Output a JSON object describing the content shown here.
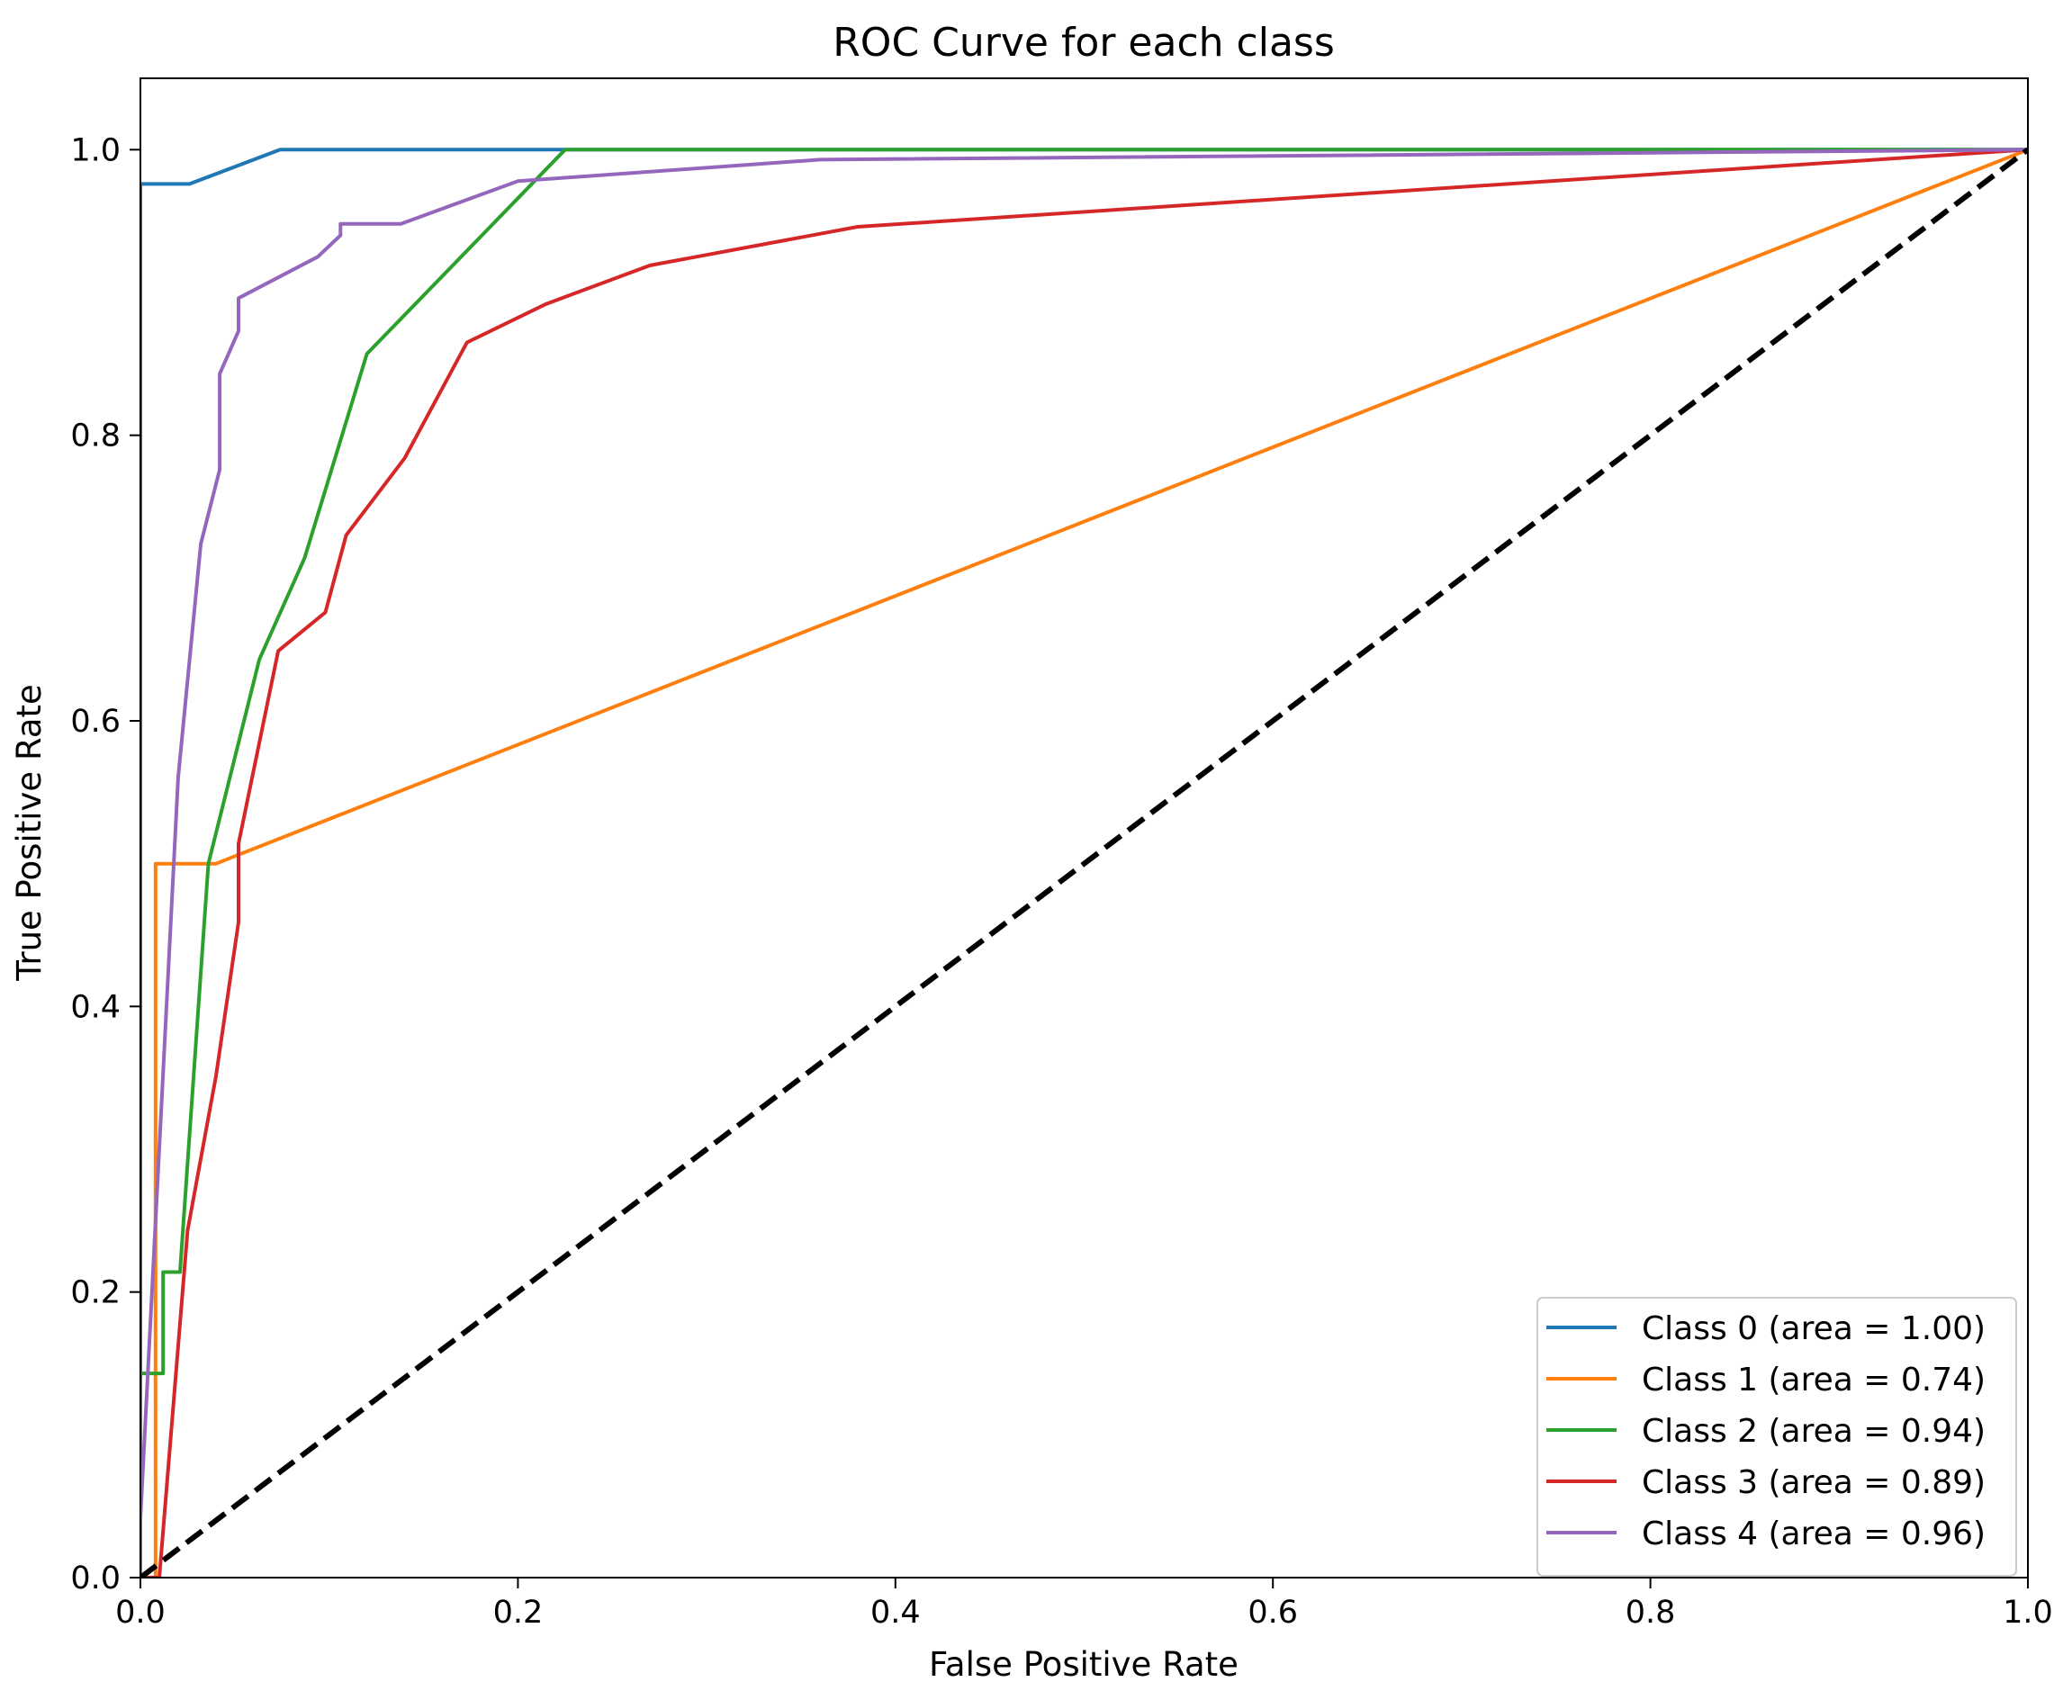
{
  "chart_data": {
    "type": "line",
    "title": "ROC Curve for each class",
    "xlabel": "False Positive Rate",
    "ylabel": "True Positive Rate",
    "xlim": [
      0.0,
      1.0
    ],
    "ylim": [
      0.0,
      1.05
    ],
    "xticks": [
      "0.0",
      "0.2",
      "0.4",
      "0.6",
      "0.8",
      "1.0"
    ],
    "yticks": [
      "0.0",
      "0.2",
      "0.4",
      "0.6",
      "0.8",
      "1.0"
    ],
    "grid": false,
    "legend_position": "lower right",
    "series": [
      {
        "name": "Class 0 (area = 1.00)",
        "color": "#1f77b4",
        "x": [
          0.0,
          0.0,
          0.026,
          0.074,
          1.0
        ],
        "y": [
          0.0,
          0.976,
          0.976,
          1.0,
          1.0
        ]
      },
      {
        "name": "Class 1 (area = 0.74)",
        "color": "#ff7f0e",
        "x": [
          0.0,
          0.008,
          0.008,
          0.04,
          1.0
        ],
        "y": [
          0.0,
          0.0,
          0.5,
          0.5,
          1.0
        ]
      },
      {
        "name": "Class 2 (area = 0.94)",
        "color": "#2ca02c",
        "x": [
          0.0,
          0.0,
          0.008,
          0.012,
          0.012,
          0.021,
          0.021,
          0.036,
          0.063,
          0.087,
          0.12,
          0.225,
          1.0
        ],
        "y": [
          0.0,
          0.143,
          0.143,
          0.143,
          0.214,
          0.214,
          0.214,
          0.5,
          0.643,
          0.714,
          0.857,
          1.0,
          1.0
        ]
      },
      {
        "name": "Class 3 (area = 0.89)",
        "color": "#d62728",
        "x": [
          0.0,
          0.01,
          0.025,
          0.04,
          0.052,
          0.052,
          0.073,
          0.098,
          0.109,
          0.14,
          0.173,
          0.215,
          0.27,
          0.38,
          1.0
        ],
        "y": [
          0.0,
          0.0,
          0.243,
          0.351,
          0.459,
          0.514,
          0.649,
          0.676,
          0.73,
          0.784,
          0.865,
          0.892,
          0.919,
          0.946,
          1.0
        ]
      },
      {
        "name": "Class 4 (area = 0.96)",
        "color": "#9467bd",
        "x": [
          0.0,
          0.0,
          0.02,
          0.032,
          0.042,
          0.042,
          0.052,
          0.052,
          0.094,
          0.106,
          0.106,
          0.138,
          0.2,
          0.36,
          1.0
        ],
        "y": [
          0.0,
          0.041,
          0.56,
          0.724,
          0.776,
          0.843,
          0.873,
          0.896,
          0.925,
          0.94,
          0.948,
          0.948,
          0.978,
          0.993,
          1.0
        ]
      },
      {
        "name": "",
        "color": "#000000",
        "dashed": true,
        "x": [
          0.0,
          1.0
        ],
        "y": [
          0.0,
          1.0
        ]
      }
    ]
  }
}
